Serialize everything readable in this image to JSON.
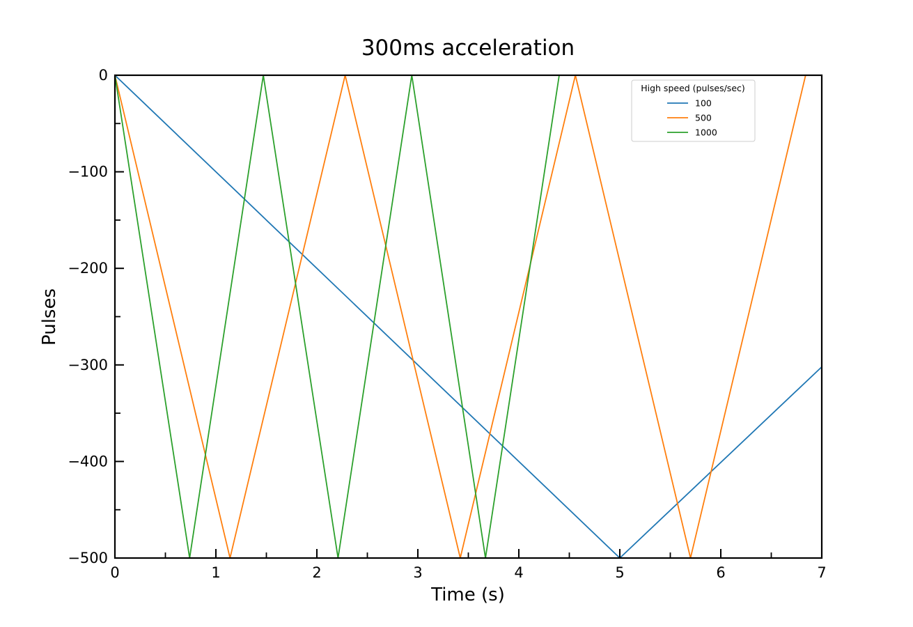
{
  "chart_data": {
    "type": "line",
    "title": "300ms acceleration",
    "xlabel": "Time (s)",
    "ylabel": "Pulses",
    "xlim": [
      0,
      7
    ],
    "ylim": [
      -500,
      0
    ],
    "x_ticks": [
      "0",
      "1",
      "2",
      "3",
      "4",
      "5",
      "6",
      "7"
    ],
    "y_ticks": [
      "0",
      "−100",
      "−200",
      "−300",
      "−400",
      "−500"
    ],
    "grid": false,
    "legend": {
      "title": "High speed (pulses/sec)",
      "placement": "top-right"
    },
    "series": [
      {
        "name": "100",
        "color": "#1f77b4",
        "x": [
          0,
          5.0,
          7.0
        ],
        "y": [
          0,
          -500,
          -302
        ]
      },
      {
        "name": "500",
        "color": "#ff7f0e",
        "x": [
          0,
          1.14,
          2.28,
          3.42,
          4.56,
          5.7,
          6.84
        ],
        "y": [
          0,
          -500,
          0,
          -500,
          0,
          -500,
          0
        ]
      },
      {
        "name": "1000",
        "color": "#2ca02c",
        "x": [
          0,
          0.74,
          1.47,
          2.21,
          2.94,
          3.67,
          4.4
        ],
        "y": [
          0,
          -500,
          0,
          -500,
          0,
          -500,
          0
        ]
      }
    ]
  }
}
